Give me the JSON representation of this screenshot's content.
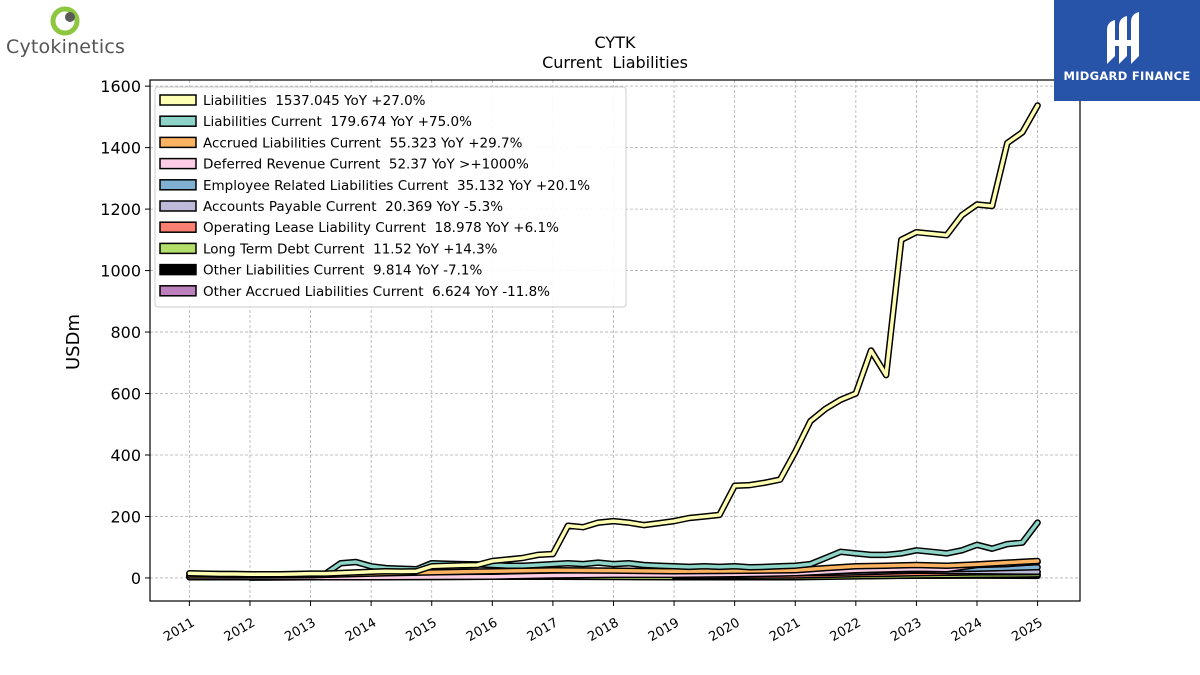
{
  "brand_left": {
    "name": "Cytokinetics",
    "icon": "cytokinetics-logo-icon",
    "color": "#8dc63f"
  },
  "brand_right": {
    "name": "MIDGARD FINANCE",
    "icon": "midgard-logo-icon",
    "color": "#2754a8"
  },
  "chart_data": {
    "type": "line",
    "title": "CYTK",
    "subtitle": "Current  Liabilities",
    "ylabel": "USDm",
    "xlabel": "",
    "xlim": [
      2010.35,
      2025.7
    ],
    "ylim": [
      -75,
      1620
    ],
    "yticks": [
      0,
      200,
      400,
      600,
      800,
      1000,
      1200,
      1400,
      1600
    ],
    "xticks": [
      "2011",
      "2012",
      "2013",
      "2014",
      "2015",
      "2016",
      "2017",
      "2018",
      "2019",
      "2020",
      "2021",
      "2022",
      "2023",
      "2024",
      "2025"
    ],
    "grid": true,
    "legend_position": "top-left",
    "series": [
      {
        "name": "Liabilities  1537.045 YoY +27.0%",
        "color": "#ffffb3",
        "x": [
          2011.0,
          2011.25,
          2011.5,
          2011.75,
          2012.0,
          2012.25,
          2012.5,
          2012.75,
          2013.0,
          2013.25,
          2013.5,
          2013.75,
          2014.0,
          2014.25,
          2014.5,
          2014.75,
          2015.0,
          2015.25,
          2015.5,
          2015.75,
          2016.0,
          2016.25,
          2016.5,
          2016.75,
          2017.0,
          2017.25,
          2017.5,
          2017.75,
          2018.0,
          2018.25,
          2018.5,
          2018.75,
          2019.0,
          2019.25,
          2019.5,
          2019.75,
          2020.0,
          2020.25,
          2020.5,
          2020.75,
          2021.0,
          2021.25,
          2021.5,
          2021.75,
          2022.0,
          2022.25,
          2022.5,
          2022.75,
          2023.0,
          2023.25,
          2023.5,
          2023.75,
          2024.0,
          2024.25,
          2024.5,
          2024.75,
          2025.0
        ],
        "y": [
          15,
          14,
          13,
          13,
          12,
          12,
          12,
          13,
          14,
          14,
          16,
          18,
          20,
          22,
          21,
          22,
          38,
          40,
          41,
          42,
          55,
          60,
          65,
          75,
          78,
          170,
          165,
          180,
          185,
          180,
          172,
          178,
          185,
          195,
          200,
          205,
          300,
          302,
          310,
          320,
          410,
          510,
          550,
          580,
          600,
          740,
          660,
          1100,
          1125,
          1120,
          1115,
          1180,
          1215,
          1210,
          1415,
          1450,
          1537
        ]
      },
      {
        "name": "Liabilities Current  179.674 YoY +75.0%",
        "color": "#8dd3c7",
        "x": [
          2011.0,
          2011.5,
          2012.0,
          2012.5,
          2013.0,
          2013.25,
          2013.5,
          2013.75,
          2014.0,
          2014.25,
          2014.5,
          2014.75,
          2015.0,
          2015.25,
          2015.5,
          2015.75,
          2016.0,
          2016.25,
          2016.5,
          2016.75,
          2017.0,
          2017.25,
          2017.5,
          2017.75,
          2018.0,
          2018.25,
          2018.5,
          2018.75,
          2019.0,
          2019.25,
          2019.5,
          2019.75,
          2020.0,
          2020.25,
          2020.5,
          2020.75,
          2021.0,
          2021.25,
          2021.5,
          2021.75,
          2022.0,
          2022.25,
          2022.5,
          2022.75,
          2023.0,
          2023.25,
          2023.5,
          2023.75,
          2024.0,
          2024.25,
          2024.5,
          2024.75,
          2025.0
        ],
        "y": [
          14,
          13,
          12,
          12,
          13,
          14,
          48,
          52,
          38,
          32,
          30,
          28,
          48,
          46,
          45,
          44,
          42,
          40,
          40,
          42,
          45,
          48,
          45,
          50,
          45,
          48,
          42,
          40,
          38,
          36,
          38,
          36,
          38,
          35,
          36,
          38,
          40,
          45,
          65,
          85,
          80,
          75,
          75,
          80,
          90,
          85,
          80,
          90,
          108,
          95,
          110,
          115,
          180
        ]
      },
      {
        "name": "Accrued Liabilities Current  55.323 YoY +29.7%",
        "color": "#fdb462",
        "x": [
          2011.0,
          2012.0,
          2013.0,
          2014.0,
          2015.0,
          2016.0,
          2017.0,
          2018.0,
          2019.0,
          2020.0,
          2021.0,
          2021.5,
          2022.0,
          2022.5,
          2023.0,
          2023.5,
          2024.0,
          2024.5,
          2025.0
        ],
        "y": [
          8,
          8,
          9,
          14,
          18,
          22,
          25,
          24,
          22,
          23,
          25,
          32,
          38,
          40,
          42,
          40,
          44,
          50,
          55
        ]
      },
      {
        "name": "Deferred Revenue Current  52.37 YoY >+1000%",
        "color": "#fccde5",
        "x": [
          2011.0,
          2012.0,
          2013.0,
          2014.0,
          2015.0,
          2016.0,
          2017.0,
          2018.0,
          2019.0,
          2020.0,
          2021.0,
          2022.0,
          2023.0,
          2023.5,
          2024.0,
          2024.5,
          2025.0
        ],
        "y": [
          2,
          2,
          2,
          2,
          3,
          4,
          8,
          10,
          10,
          12,
          15,
          25,
          30,
          28,
          42,
          45,
          52
        ]
      },
      {
        "name": "Employee Related Liabilities Current  35.132 YoY +20.1%",
        "color": "#80b1d3",
        "x": [
          2011.0,
          2012.0,
          2013.0,
          2014.0,
          2015.0,
          2016.0,
          2017.0,
          2018.0,
          2019.0,
          2020.0,
          2021.0,
          2022.0,
          2023.0,
          2024.0,
          2025.0
        ],
        "y": [
          4,
          4,
          5,
          7,
          9,
          11,
          13,
          14,
          15,
          17,
          20,
          24,
          28,
          30,
          35
        ]
      },
      {
        "name": "Accounts Payable Current  20.369 YoY -5.3%",
        "color": "#bebada",
        "x": [
          2011.0,
          2012.0,
          2013.0,
          2014.0,
          2015.0,
          2016.0,
          2017.0,
          2018.0,
          2019.0,
          2020.0,
          2021.0,
          2022.0,
          2023.0,
          2024.0,
          2025.0
        ],
        "y": [
          3,
          3,
          4,
          5,
          7,
          8,
          10,
          12,
          12,
          13,
          15,
          18,
          24,
          22,
          20
        ]
      },
      {
        "name": "Operating Lease Liability Current  18.978 YoY +6.1%",
        "color": "#fb8072",
        "x": [
          2019.0,
          2020.0,
          2021.0,
          2022.0,
          2023.0,
          2024.0,
          2025.0
        ],
        "y": [
          6,
          7,
          8,
          12,
          15,
          18,
          19
        ]
      },
      {
        "name": "Long Term Debt Current  11.52 YoY +14.3%",
        "color": "#b3de69",
        "x": [
          2012.0,
          2013.0,
          2014.0,
          2015.0,
          2016.0,
          2017.0,
          2018.0,
          2019.0,
          2020.0,
          2021.0,
          2022.0,
          2023.0,
          2024.0,
          2025.0
        ],
        "y": [
          1,
          2,
          3,
          5,
          5,
          4,
          3,
          2,
          2,
          2,
          5,
          8,
          10,
          11.5
        ]
      },
      {
        "name": "Other Liabilities Current  9.814 YoY -7.1%",
        "color": "#000000",
        "x": [
          2011.0,
          2012.0,
          2013.0,
          2014.0,
          2015.0,
          2016.0,
          2017.0,
          2018.0,
          2019.0,
          2020.0,
          2021.0,
          2022.0,
          2022.5,
          2023.0,
          2023.5,
          2024.0,
          2024.5,
          2025.0
        ],
        "y": [
          5,
          5,
          6,
          8,
          10,
          12,
          14,
          15,
          12,
          10,
          12,
          18,
          30,
          25,
          20,
          15,
          12,
          10
        ]
      },
      {
        "name": "Other Accrued Liabilities Current  6.624 YoY -11.8%",
        "color": "#bc80bd",
        "x": [
          2012.0,
          2013.0,
          2014.0,
          2015.0,
          2016.0,
          2017.0,
          2018.0,
          2019.0,
          2020.0,
          2021.0,
          2022.0,
          2023.0,
          2024.0,
          2025.0
        ],
        "y": [
          2,
          2,
          3,
          3,
          4,
          4,
          5,
          5,
          5,
          6,
          6,
          7,
          7.5,
          6.6
        ]
      }
    ]
  }
}
